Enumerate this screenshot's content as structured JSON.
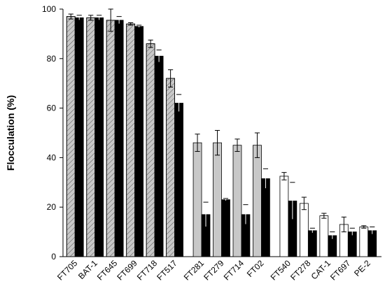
{
  "chart_data": {
    "type": "bar",
    "y_label": "Flocculation (%)",
    "categories": [
      "FT705",
      "BAT-1",
      "FT645",
      "FT699",
      "FT718",
      "FT517",
      "FT281",
      "FT279",
      "FT714",
      "FT02",
      "FT540",
      "FT278",
      "CAT-1",
      "FT697",
      "PE-2"
    ],
    "groups": [
      6,
      4,
      5
    ],
    "series": [
      {
        "color": [
          "#c8c8c8",
          "#c8c8c8",
          "#c8c8c8",
          "#c8c8c8",
          "#c8c8c8",
          "#c8c8c8",
          "#c8c8c8",
          "#c8c8c8",
          "#c8c8c8",
          "#c8c8c8",
          "#ffffff",
          "#ffffff",
          "#ffffff",
          "#ffffff",
          "#ffffff"
        ],
        "hatch": [
          true,
          true,
          true,
          true,
          true,
          true,
          false,
          false,
          false,
          false,
          false,
          false,
          false,
          false,
          false
        ],
        "values": [
          97,
          96.5,
          95.5,
          94,
          86,
          72,
          46,
          46,
          45,
          45,
          32.5,
          21.5,
          16.5,
          13,
          12
        ],
        "errors": [
          1,
          1,
          4.5,
          0.5,
          1.5,
          3.5,
          3.5,
          5,
          2.5,
          5,
          1.5,
          2.5,
          1,
          3,
          0.5
        ]
      },
      {
        "color": "#000000",
        "values": [
          96.5,
          96.5,
          95.5,
          93,
          81,
          62,
          17,
          23,
          17,
          31.5,
          22.5,
          10.5,
          8.5,
          10,
          10.5
        ],
        "errors": [
          1,
          1,
          1.5,
          0.5,
          2.5,
          3.5,
          5,
          0.5,
          4,
          4,
          7.5,
          1,
          1.5,
          1.5,
          1.5
        ]
      }
    ],
    "ylim": [
      0,
      100
    ],
    "yticks": [
      0,
      20,
      40,
      60,
      80,
      100
    ],
    "grid": false
  }
}
